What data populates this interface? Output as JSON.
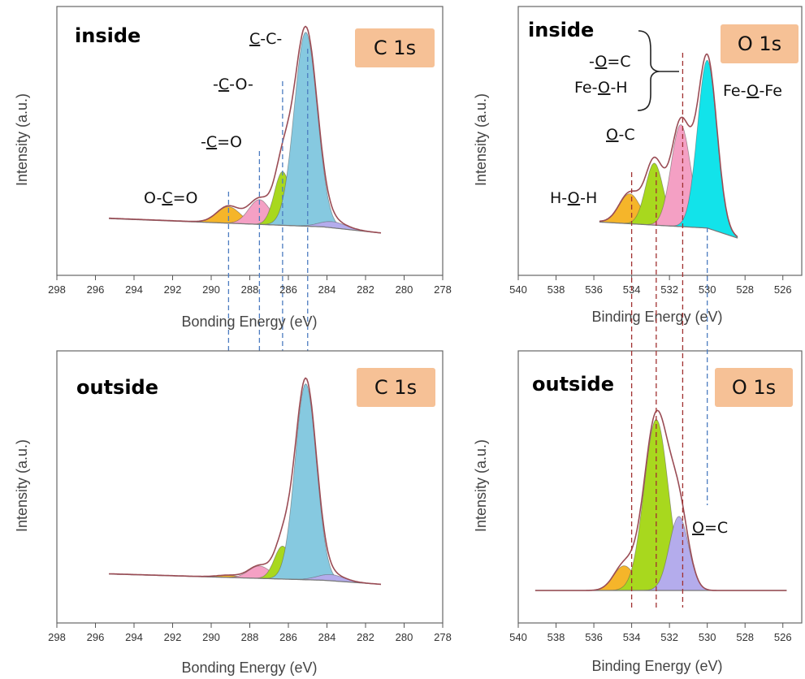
{
  "colors": {
    "orange": "#f5b52a",
    "pink": "#f4a0c4",
    "green": "#a8d81e",
    "lightblue": "#86c9e0",
    "cyan": "#12e3ea",
    "lavender": "#b4acec",
    "envelope": "#9a4c55",
    "badge": "#f6c196",
    "blueDash": "#4c7cc0",
    "redDash": "#a03030"
  },
  "chart_data": [
    {
      "type": "area",
      "panel": "inside",
      "label": "C 1s",
      "xlabel": "Bonding Energy (eV)",
      "ylabel": "Intensity (a.u.)",
      "xlim": [
        298,
        278
      ],
      "xticks": [
        298,
        296,
        294,
        292,
        290,
        288,
        286,
        284,
        282,
        280,
        278
      ],
      "ylim": [
        0,
        1
      ],
      "background": [
        [
          295.3,
          0.09
        ],
        [
          284.2,
          0.05
        ],
        [
          281.2,
          0.02
        ]
      ],
      "series": [
        {
          "name": "O-C=O",
          "center": 289.1,
          "height": 0.08,
          "fwhm": 1.4,
          "color": "orange"
        },
        {
          "name": "-C=O",
          "center": 287.5,
          "height": 0.12,
          "fwhm": 1.3,
          "color": "pink"
        },
        {
          "name": "-C-O-",
          "center": 286.3,
          "height": 0.26,
          "fwhm": 1.0,
          "color": "green"
        },
        {
          "name": "C-C-",
          "center": 285.1,
          "height": 0.94,
          "fwhm": 1.4,
          "color": "lightblue"
        },
        {
          "name": "",
          "center": 283.7,
          "height": 0.03,
          "fwhm": 1.6,
          "color": "lavender"
        }
      ],
      "guides": [
        289.1,
        287.5,
        286.3,
        285.0
      ],
      "annotations": [
        {
          "text": "O-C=O",
          "x": 289.3
        },
        {
          "text": "-C=O",
          "x": 287.8
        },
        {
          "text": "-C-O-",
          "x": 286.5
        },
        {
          "text": "C-C-",
          "x": 285.3
        }
      ]
    },
    {
      "type": "area",
      "panel": "inside",
      "label": "O 1s",
      "xlabel": "Binding Energy (eV)",
      "ylabel": "Intensity (a.u.)",
      "xlim": [
        540,
        525
      ],
      "xticks": [
        540,
        538,
        536,
        534,
        532,
        530,
        528,
        526
      ],
      "ylim": [
        0,
        1
      ],
      "background": [
        [
          535.7,
          0.1
        ],
        [
          530.0,
          0.07
        ],
        [
          528.4,
          0.02
        ]
      ],
      "series": [
        {
          "name": "H-O-H",
          "center": 534.1,
          "height": 0.15,
          "fwhm": 1.3,
          "color": "orange"
        },
        {
          "name": "O-C",
          "center": 532.8,
          "height": 0.31,
          "fwhm": 1.1,
          "color": "green"
        },
        {
          "name": "-O=C / Fe-O-H",
          "center": 531.4,
          "height": 0.51,
          "fwhm": 1.2,
          "color": "pink"
        },
        {
          "name": "Fe-O-Fe",
          "center": 530.0,
          "height": 0.84,
          "fwhm": 1.2,
          "color": "cyan"
        }
      ],
      "guides": [],
      "annotations": [
        {
          "text": "H-O-H",
          "x": 534.9
        },
        {
          "text": "O-C",
          "x": 533.3
        },
        {
          "text": "-O=C",
          "x": 532.9
        },
        {
          "text": "Fe-O-H",
          "x": 533.1
        },
        {
          "text": "Fe-O-Fe",
          "x": 529.2
        }
      ]
    },
    {
      "type": "area",
      "panel": "outside",
      "label": "C 1s",
      "xlabel": "Bonding Energy (eV)",
      "ylabel": "Intensity (a.u.)",
      "xlim": [
        298,
        278
      ],
      "xticks": [
        298,
        296,
        294,
        292,
        290,
        288,
        286,
        284,
        282,
        280,
        278
      ],
      "ylim": [
        0,
        1
      ],
      "background": [
        [
          295.3,
          0.06
        ],
        [
          284.2,
          0.03
        ],
        [
          281.2,
          0.01
        ]
      ],
      "series": [
        {
          "name": "O-C=O",
          "center": 289.1,
          "height": 0.01,
          "fwhm": 1.4,
          "color": "orange"
        },
        {
          "name": "-C=O",
          "center": 287.5,
          "height": 0.06,
          "fwhm": 1.3,
          "color": "pink"
        },
        {
          "name": "-C-O-",
          "center": 286.3,
          "height": 0.16,
          "fwhm": 1.0,
          "color": "green"
        },
        {
          "name": "C-C-",
          "center": 285.1,
          "height": 0.95,
          "fwhm": 1.3,
          "color": "lightblue"
        },
        {
          "name": "",
          "center": 283.8,
          "height": 0.03,
          "fwhm": 1.6,
          "color": "lavender"
        }
      ],
      "guides": [],
      "annotations": []
    },
    {
      "type": "area",
      "panel": "outside",
      "label": "O 1s",
      "xlabel": "Binding Energy (eV)",
      "ylabel": "Intensity (a.u.)",
      "xlim": [
        540,
        525
      ],
      "xticks": [
        540,
        538,
        536,
        534,
        532,
        530,
        528,
        526
      ],
      "ylim": [
        0,
        1
      ],
      "background": [
        [
          539.1,
          0.0
        ],
        [
          525.8,
          0.0
        ]
      ],
      "series": [
        {
          "name": "H-O-H",
          "center": 534.4,
          "height": 0.13,
          "fwhm": 1.3,
          "color": "orange"
        },
        {
          "name": "O-C",
          "center": 532.7,
          "height": 0.9,
          "fwhm": 1.5,
          "color": "green"
        },
        {
          "name": "O=C",
          "center": 531.5,
          "height": 0.39,
          "fwhm": 1.2,
          "color": "lavender"
        }
      ],
      "guides": [
        534.0,
        532.7,
        531.3,
        530.0
      ],
      "annotations": [
        {
          "text": "O=C",
          "x": 530.1
        }
      ]
    }
  ],
  "panels": {
    "tl": {
      "tag": "inside",
      "badge": "C 1s",
      "xlabel": "Bonding Energy (eV)",
      "ylabel": "Intensity (a.u.)",
      "ticks": [
        "298",
        "296",
        "294",
        "292",
        "290",
        "288",
        "286",
        "284",
        "282",
        "280",
        "278"
      ]
    },
    "tr": {
      "tag": "inside",
      "badge": "O 1s",
      "xlabel": "Binding Energy (eV)",
      "ylabel": "Intensity (a.u.)",
      "ticks": [
        "540",
        "538",
        "536",
        "534",
        "532",
        "530",
        "528",
        "526"
      ]
    },
    "bl": {
      "tag": "outside",
      "badge": "C 1s",
      "xlabel": "Bonding Energy (eV)",
      "ylabel": "Intensity (a.u.)",
      "ticks": [
        "298",
        "296",
        "294",
        "292",
        "290",
        "288",
        "286",
        "284",
        "282",
        "280",
        "278"
      ]
    },
    "br": {
      "tag": "outside",
      "badge": "O 1s",
      "xlabel": "Binding Energy (eV)",
      "ylabel": "Intensity (a.u.)",
      "ticks": [
        "540",
        "538",
        "536",
        "534",
        "532",
        "530",
        "528",
        "526"
      ]
    }
  },
  "labels": {
    "tl": {
      "occ": [
        "O-",
        "C",
        "=O"
      ],
      "co": [
        "-",
        "C",
        "=O"
      ],
      "ceo": [
        "-",
        "C",
        "-O-"
      ],
      "cc": [
        "C",
        "-C-"
      ]
    },
    "tr": {
      "hoh": [
        "H-",
        "O",
        "-H"
      ],
      "oc": [
        "O",
        "-C"
      ],
      "odc": [
        "-",
        "O",
        "=C"
      ],
      "feoh": [
        "Fe-",
        "O",
        "-H"
      ],
      "feofe": [
        "Fe-",
        "O",
        "-Fe"
      ]
    },
    "br": {
      "odc": [
        "O",
        "=C"
      ]
    }
  }
}
